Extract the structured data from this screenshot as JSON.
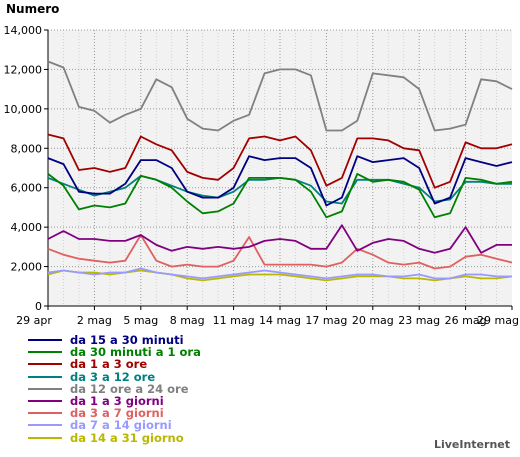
{
  "chart_data": {
    "type": "line",
    "ylabel": "Numero",
    "ylim": [
      0,
      14000
    ],
    "y_ticks": [
      0,
      2000,
      4000,
      6000,
      8000,
      10000,
      12000,
      14000
    ],
    "y_tick_labels": [
      "0",
      "2,000",
      "4,000",
      "6,000",
      "8,000",
      "10,000",
      "12,000",
      "14,000"
    ],
    "x_tick_labels": [
      "29 apr",
      "2 mag",
      "5 mag",
      "8 mag",
      "11 mag",
      "14 mag",
      "17 mag",
      "20 mag",
      "23 mag",
      "26 mag",
      "29 mag"
    ],
    "grid": true,
    "legend_position": "bottom-left",
    "brand": "LiveInternet",
    "series": [
      {
        "name": "da 15 a 30 minuti",
        "color": "#000080",
        "values": [
          7500,
          7200,
          5800,
          5700,
          5700,
          6200,
          7400,
          7400,
          7000,
          5800,
          5500,
          5500,
          6000,
          7600,
          7400,
          7500,
          7500,
          7000,
          5100,
          5500,
          7600,
          7300,
          7400,
          7500,
          7000,
          5200,
          5500,
          7500,
          7300,
          7100,
          7300
        ]
      },
      {
        "name": "da 30 minuti a 1 ora",
        "color": "#008000",
        "values": [
          6700,
          6100,
          4900,
          5100,
          5000,
          5200,
          6600,
          6400,
          6000,
          5300,
          4700,
          4800,
          5200,
          6500,
          6500,
          6500,
          6400,
          5800,
          4500,
          4800,
          6700,
          6300,
          6400,
          6300,
          5900,
          4500,
          4700,
          6500,
          6400,
          6200,
          6300
        ]
      },
      {
        "name": "da 1 a 3 ore",
        "color": "#a00000",
        "values": [
          8700,
          8500,
          6900,
          7000,
          6800,
          7000,
          8600,
          8200,
          7900,
          6800,
          6500,
          6400,
          7000,
          8500,
          8600,
          8400,
          8600,
          7900,
          6100,
          6500,
          8500,
          8500,
          8400,
          8000,
          7900,
          6000,
          6300,
          8300,
          8000,
          8000,
          8200
        ]
      },
      {
        "name": "da 3 a 12 ore",
        "color": "#008080",
        "values": [
          6500,
          6200,
          5900,
          5600,
          5800,
          6000,
          6600,
          6400,
          6100,
          5800,
          5600,
          5500,
          5800,
          6400,
          6400,
          6500,
          6400,
          6100,
          5300,
          5200,
          6400,
          6400,
          6400,
          6200,
          6000,
          5300,
          5400,
          6300,
          6300,
          6200,
          6200
        ]
      },
      {
        "name": "da 12 ore a 24 ore",
        "color": "#808080",
        "values": [
          12400,
          12100,
          10100,
          9900,
          9300,
          9700,
          10000,
          11500,
          11100,
          9500,
          9000,
          8900,
          9400,
          9700,
          11800,
          12000,
          12000,
          11700,
          8900,
          8900,
          9400,
          11800,
          11700,
          11600,
          11000,
          8900,
          9000,
          9200,
          11500,
          11400,
          11000
        ]
      },
      {
        "name": "da 1 a 3 giorni",
        "color": "#800080",
        "values": [
          3400,
          3800,
          3400,
          3400,
          3300,
          3300,
          3600,
          3100,
          2800,
          3000,
          2900,
          3000,
          2900,
          3000,
          3300,
          3400,
          3300,
          2900,
          2900,
          4100,
          2800,
          3200,
          3400,
          3300,
          2900,
          2700,
          2900,
          4000,
          2700,
          3100,
          3100
        ]
      },
      {
        "name": "da 3 a 7 giorni",
        "color": "#e06060",
        "values": [
          2900,
          2600,
          2400,
          2300,
          2200,
          2300,
          3600,
          2300,
          2000,
          2100,
          2000,
          2000,
          2300,
          3500,
          2100,
          2100,
          2100,
          2100,
          2000,
          2200,
          2900,
          2600,
          2200,
          2100,
          2200,
          1900,
          2000,
          2500,
          2600,
          2400,
          2200
        ]
      },
      {
        "name": "da 7 a 14 giorni",
        "color": "#9999ff",
        "values": [
          1700,
          1800,
          1700,
          1600,
          1700,
          1700,
          1900,
          1700,
          1600,
          1500,
          1400,
          1500,
          1600,
          1700,
          1800,
          1700,
          1600,
          1500,
          1400,
          1500,
          1600,
          1600,
          1500,
          1500,
          1600,
          1400,
          1400,
          1600,
          1600,
          1500,
          1500
        ]
      },
      {
        "name": "da 14 a 31 giorno",
        "color": "#b8b800",
        "values": [
          1600,
          1800,
          1700,
          1700,
          1600,
          1700,
          1800,
          1700,
          1600,
          1400,
          1300,
          1400,
          1500,
          1600,
          1600,
          1600,
          1500,
          1400,
          1300,
          1400,
          1500,
          1500,
          1500,
          1400,
          1400,
          1300,
          1400,
          1500,
          1400,
          1400,
          1500
        ]
      }
    ]
  }
}
